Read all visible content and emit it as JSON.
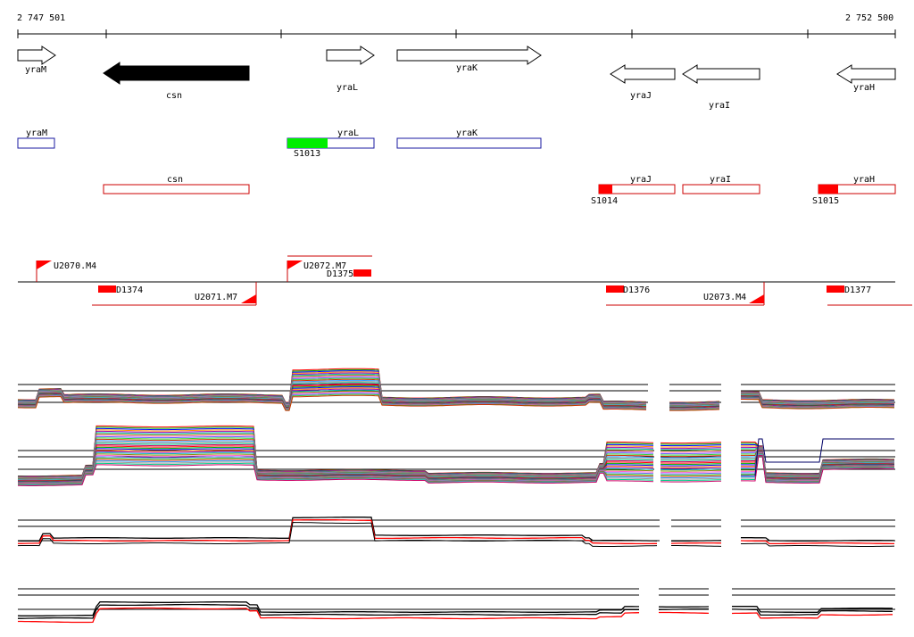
{
  "coordinates": {
    "start_label": "2 747 501",
    "end_label": "2 752 500"
  },
  "genes": [
    {
      "id": "yraM",
      "label": "yraM",
      "strand": "+",
      "fill": "none"
    },
    {
      "id": "csn",
      "label": "csn",
      "strand": "-",
      "fill": "#000000"
    },
    {
      "id": "yraL",
      "label": "yraL",
      "strand": "+",
      "fill": "none"
    },
    {
      "id": "yraK",
      "label": "yraK",
      "strand": "+",
      "fill": "none"
    },
    {
      "id": "yraJ",
      "label": "yraJ",
      "strand": "-",
      "fill": "none"
    },
    {
      "id": "yraI",
      "label": "yraI",
      "strand": "-",
      "fill": "none"
    },
    {
      "id": "yraH",
      "label": "yraH",
      "strand": "-",
      "fill": "none"
    }
  ],
  "transcription_units": {
    "forward": [
      {
        "label": "yraM",
        "color": "#1a1aa0",
        "site": ""
      },
      {
        "label": "yraL",
        "color": "#1a1aa0",
        "site": "S1013",
        "site_color": "#00ee00"
      },
      {
        "label": "yraK",
        "color": "#1a1aa0",
        "site": ""
      }
    ],
    "reverse": [
      {
        "label": "csn",
        "color": "#cc0000",
        "site": ""
      },
      {
        "label": "yraJ",
        "color": "#cc0000",
        "site": "S1014",
        "site_color": "#ff0000"
      },
      {
        "label": "yraI",
        "color": "#cc0000",
        "site": ""
      },
      {
        "label": "yraH",
        "color": "#cc0000",
        "site": "S1015",
        "site_color": "#ff0000"
      }
    ]
  },
  "promoters": [
    "U2070.M4",
    "U2072.M7",
    "U2071.M7",
    "U2073.M4"
  ],
  "terminators": [
    "D1374",
    "D1375",
    "D1376",
    "D1377"
  ],
  "colors": {
    "accent": "#ff0000",
    "forward_unit": "#1a1aa0",
    "reverse_unit": "#cc0000",
    "site_green": "#00ee00",
    "axis": "#000000"
  }
}
